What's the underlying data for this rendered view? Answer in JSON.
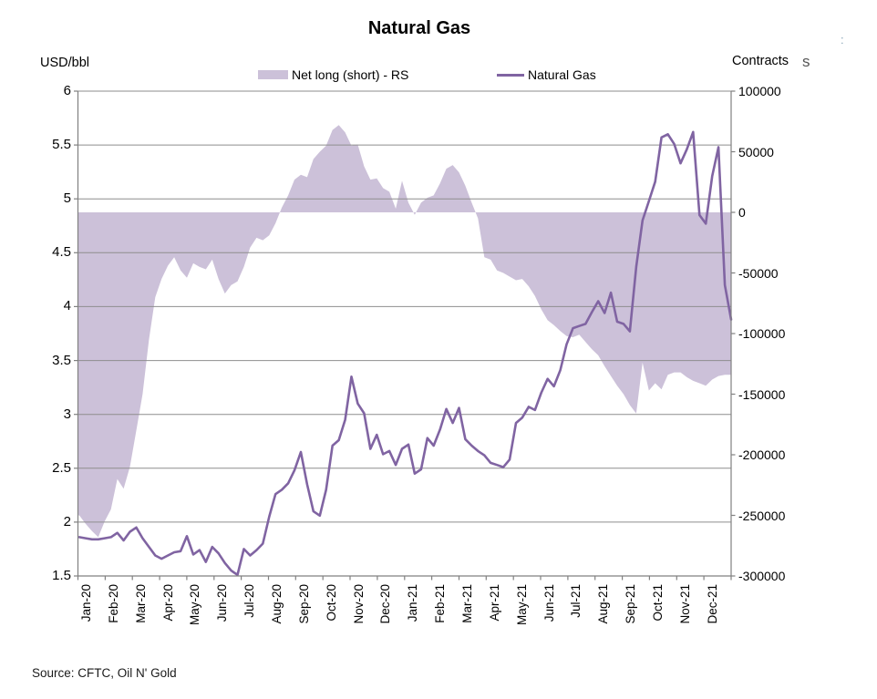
{
  "title": "Natural Gas",
  "source": "Source: CFTC, Oil N' Gold",
  "left_axis": {
    "label": "USD/bbl",
    "ticks": [
      "6",
      "5.5",
      "5",
      "4.5",
      "4",
      "3.5",
      "3",
      "2.5",
      "2",
      "1.5"
    ],
    "min": 1.5,
    "max": 6
  },
  "right_axis": {
    "label": "Contracts",
    "ticks": [
      "100000",
      "50000",
      "0",
      "-50000",
      "-100000",
      "-150000",
      "-200000",
      "-250000",
      "-300000"
    ],
    "min": -300000,
    "max": 100000
  },
  "legend": {
    "items": [
      {
        "label": "Net long (short) - RS",
        "type": "area",
        "color": "#CCC1D9"
      },
      {
        "label": "Natural Gas",
        "type": "line",
        "color": "#8064A2"
      }
    ]
  },
  "colors": {
    "area": "#CCC1D9",
    "line": "#8064A2",
    "gridline": "#8E8E8E",
    "axis": "#808080",
    "text": "#000000"
  },
  "artifacts": {
    "corner_s": "s",
    "corner_colon": ":"
  },
  "chart_data": {
    "type": "combo",
    "x_unit": "weekly",
    "categories": [
      "Jan-20",
      "Feb-20",
      "Mar-20",
      "Apr-20",
      "May-20",
      "Jun-20",
      "Jul-20",
      "Aug-20",
      "Sep-20",
      "Oct-20",
      "Nov-20",
      "Dec-20",
      "Jan-21",
      "Feb-21",
      "Mar-21",
      "Apr-21",
      "May-21",
      "Jun-21",
      "Jul-21",
      "Aug-21",
      "Sep-21",
      "Oct-21",
      "Nov-21",
      "Dec-21"
    ],
    "grid": true,
    "legend_position": "top",
    "series": [
      {
        "name": "Net long (short) - RS",
        "type": "area",
        "axis": "right",
        "ylim": [
          -300000,
          100000
        ],
        "values": [
          -250000,
          -257000,
          -263000,
          -268000,
          -255000,
          -245000,
          -220000,
          -228000,
          -210000,
          -180000,
          -150000,
          -105000,
          -70000,
          -55000,
          -44000,
          -37000,
          -48000,
          -54000,
          -42000,
          -45000,
          -47000,
          -39000,
          -55000,
          -67000,
          -60000,
          -57000,
          -45000,
          -29000,
          -21000,
          -23000,
          -19000,
          -9000,
          4000,
          14000,
          27000,
          31000,
          29000,
          44000,
          50000,
          55000,
          68000,
          72000,
          66000,
          55000,
          56000,
          38000,
          27000,
          28000,
          20000,
          17000,
          3000,
          26000,
          8000,
          -2000,
          8000,
          12000,
          14000,
          24000,
          36000,
          39000,
          33000,
          22000,
          8000,
          -5000,
          -37000,
          -39000,
          -48000,
          -50000,
          -53000,
          -56000,
          -55000,
          -61000,
          -69000,
          -80000,
          -89000,
          -93000,
          -98000,
          -102000,
          -103000,
          -101000,
          -107000,
          -113000,
          -118000,
          -127000,
          -135000,
          -143000,
          -150000,
          -159000,
          -166000,
          -124000,
          -147000,
          -141000,
          -146000,
          -134000,
          -132000,
          -132000,
          -136000,
          -139000,
          -141000,
          -143000,
          -138000,
          -135000,
          -134000,
          -134000
        ]
      },
      {
        "name": "Natural Gas",
        "type": "line",
        "axis": "left",
        "ylim": [
          1.5,
          6
        ],
        "values": [
          1.86,
          1.85,
          1.84,
          1.84,
          1.85,
          1.86,
          1.9,
          1.83,
          1.91,
          1.95,
          1.85,
          1.77,
          1.69,
          1.66,
          1.69,
          1.72,
          1.73,
          1.87,
          1.7,
          1.74,
          1.63,
          1.77,
          1.71,
          1.62,
          1.55,
          1.51,
          1.75,
          1.69,
          1.74,
          1.8,
          2.05,
          2.26,
          2.3,
          2.36,
          2.48,
          2.65,
          2.35,
          2.1,
          2.06,
          2.3,
          2.71,
          2.76,
          2.95,
          3.35,
          3.1,
          3.01,
          2.68,
          2.81,
          2.63,
          2.66,
          2.53,
          2.68,
          2.72,
          2.45,
          2.49,
          2.78,
          2.71,
          2.86,
          3.05,
          2.92,
          3.06,
          2.77,
          2.71,
          2.66,
          2.62,
          2.55,
          2.53,
          2.51,
          2.58,
          2.92,
          2.97,
          3.07,
          3.04,
          3.2,
          3.33,
          3.26,
          3.41,
          3.65,
          3.8,
          3.82,
          3.84,
          3.95,
          4.05,
          3.94,
          4.13,
          3.86,
          3.84,
          3.77,
          4.37,
          4.8,
          4.98,
          5.16,
          5.57,
          5.6,
          5.51,
          5.33,
          5.46,
          5.62,
          4.85,
          4.77,
          5.21,
          5.48,
          4.2,
          3.88
        ]
      }
    ]
  }
}
